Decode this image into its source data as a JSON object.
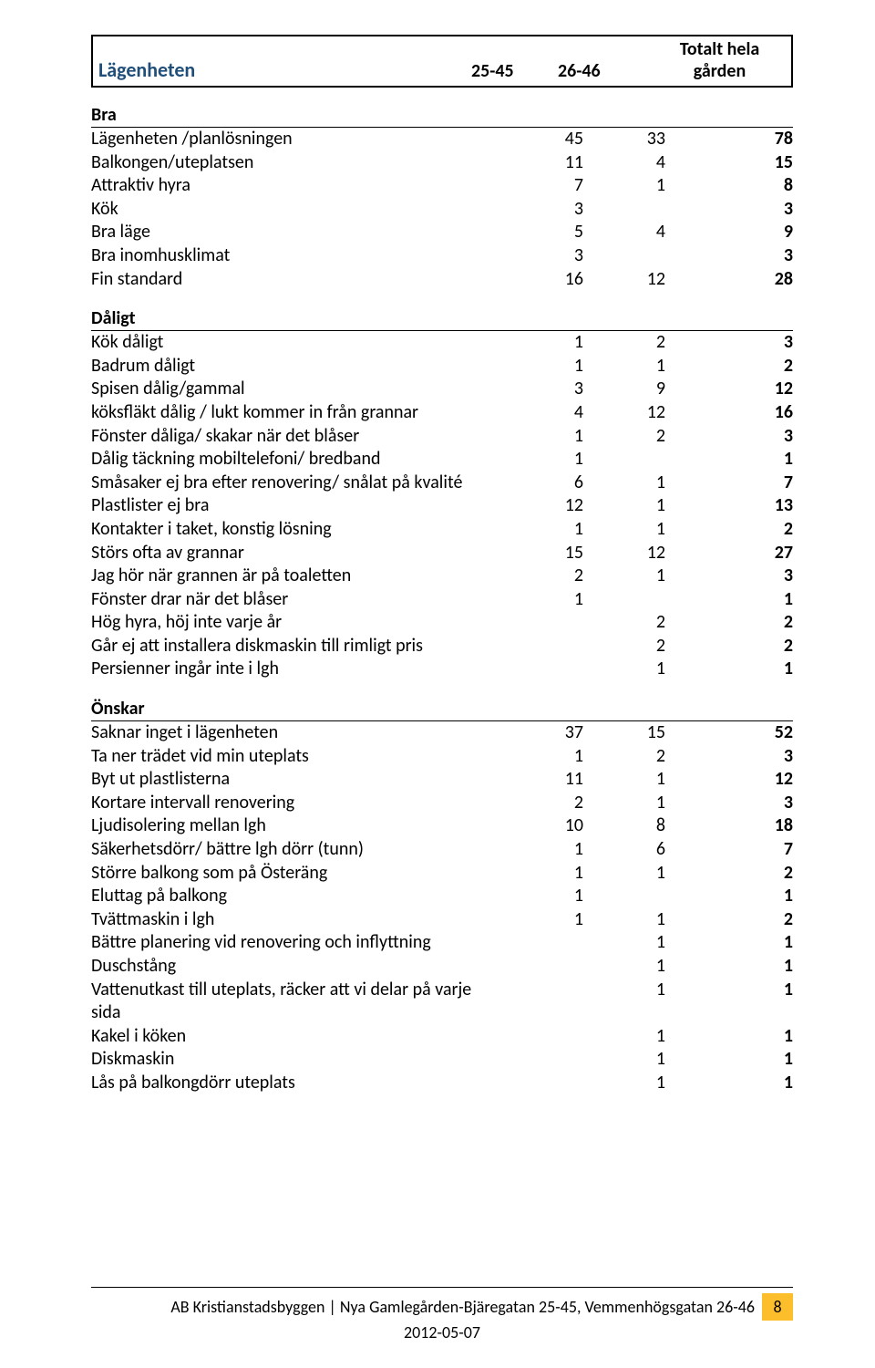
{
  "header": {
    "title": "Lägenheten",
    "col1": "25-45",
    "col2": "26-46",
    "col3_top": "Totalt hela",
    "col3_bot": "gården"
  },
  "sections": [
    {
      "title": "Bra",
      "rows": [
        {
          "label": "Lägenheten /planlösningen",
          "c1": "45",
          "c2": "33",
          "c3": "78"
        },
        {
          "label": "Balkongen/uteplatsen",
          "c1": "11",
          "c2": "4",
          "c3": "15"
        },
        {
          "label": "Attraktiv hyra",
          "c1": "7",
          "c2": "1",
          "c3": "8"
        },
        {
          "label": "Kök",
          "c1": "3",
          "c2": "",
          "c3": "3"
        },
        {
          "label": "Bra läge",
          "c1": "5",
          "c2": "4",
          "c3": "9"
        },
        {
          "label": "Bra inomhusklimat",
          "c1": "3",
          "c2": "",
          "c3": "3"
        },
        {
          "label": "Fin standard",
          "c1": "16",
          "c2": "12",
          "c3": "28"
        }
      ]
    },
    {
      "title": "Dåligt",
      "rows": [
        {
          "label": "Kök dåligt",
          "c1": "1",
          "c2": "2",
          "c3": "3"
        },
        {
          "label": "Badrum dåligt",
          "c1": "1",
          "c2": "1",
          "c3": "2"
        },
        {
          "label": "Spisen dålig/gammal",
          "c1": "3",
          "c2": "9",
          "c3": "12"
        },
        {
          "label": "köksfläkt dålig / lukt kommer in från grannar",
          "c1": "4",
          "c2": "12",
          "c3": "16"
        },
        {
          "label": "Fönster dåliga/ skakar när det blåser",
          "c1": "1",
          "c2": "2",
          "c3": "3"
        },
        {
          "label": "Dålig täckning mobiltelefoni/ bredband",
          "c1": "1",
          "c2": "",
          "c3": "1"
        },
        {
          "label": "Småsaker ej bra efter renovering/ snålat på kvalité",
          "c1": "6",
          "c2": "1",
          "c3": "7"
        },
        {
          "label": "Plastlister ej bra",
          "c1": "12",
          "c2": "1",
          "c3": "13"
        },
        {
          "label": "Kontakter i taket, konstig lösning",
          "c1": "1",
          "c2": "1",
          "c3": "2"
        },
        {
          "label": "Störs ofta av grannar",
          "c1": "15",
          "c2": "12",
          "c3": "27"
        },
        {
          "label": "Jag hör när grannen är på toaletten",
          "c1": "2",
          "c2": "1",
          "c3": "3"
        },
        {
          "label": "Fönster drar när det blåser",
          "c1": "1",
          "c2": "",
          "c3": "1"
        },
        {
          "label": "Hög hyra, höj inte varje år",
          "c1": "",
          "c2": "2",
          "c3": "2"
        },
        {
          "label": "Går ej att installera diskmaskin till rimligt pris",
          "c1": "",
          "c2": "2",
          "c3": "2"
        },
        {
          "label": "Persienner ingår inte i lgh",
          "c1": "",
          "c2": "1",
          "c3": "1"
        }
      ]
    },
    {
      "title": "Önskar",
      "rows": [
        {
          "label": "Saknar inget i lägenheten",
          "c1": "37",
          "c2": "15",
          "c3": "52"
        },
        {
          "label": "Ta ner trädet vid min uteplats",
          "c1": "1",
          "c2": "2",
          "c3": "3"
        },
        {
          "label": "Byt ut plastlisterna",
          "c1": "11",
          "c2": "1",
          "c3": "12"
        },
        {
          "label": "Kortare intervall renovering",
          "c1": "2",
          "c2": "1",
          "c3": "3"
        },
        {
          "label": "Ljudisolering mellan lgh",
          "c1": "10",
          "c2": "8",
          "c3": "18"
        },
        {
          "label": "Säkerhetsdörr/ bättre lgh dörr (tunn)",
          "c1": "1",
          "c2": "6",
          "c3": "7"
        },
        {
          "label": "Större balkong som på Österäng",
          "c1": "1",
          "c2": "1",
          "c3": "2"
        },
        {
          "label": "Eluttag på balkong",
          "c1": "1",
          "c2": "",
          "c3": "1"
        },
        {
          "label": "Tvättmaskin i lgh",
          "c1": "1",
          "c2": "1",
          "c3": "2"
        },
        {
          "label": "Bättre planering vid renovering och inflyttning",
          "c1": "",
          "c2": "1",
          "c3": "1"
        },
        {
          "label": "Duschstång",
          "c1": "",
          "c2": "1",
          "c3": "1"
        },
        {
          "label": "Vattenutkast till uteplats, räcker att vi delar på varje sida",
          "c1": "",
          "c2": "1",
          "c3": "1"
        },
        {
          "label": "Kakel i köken",
          "c1": "",
          "c2": "1",
          "c3": "1"
        },
        {
          "label": "Diskmaskin",
          "c1": "",
          "c2": "1",
          "c3": "1"
        },
        {
          "label": "Lås på balkongdörr uteplats",
          "c1": "",
          "c2": "1",
          "c3": "1"
        }
      ]
    }
  ],
  "footer": {
    "text": "AB Kristianstadsbyggen | Nya Gamlegården-Bjäregatan 25-45, Vemmenhögsgatan 26-46",
    "page": "8",
    "date": "2012-05-07",
    "badge_color": "#fcbf2b"
  }
}
